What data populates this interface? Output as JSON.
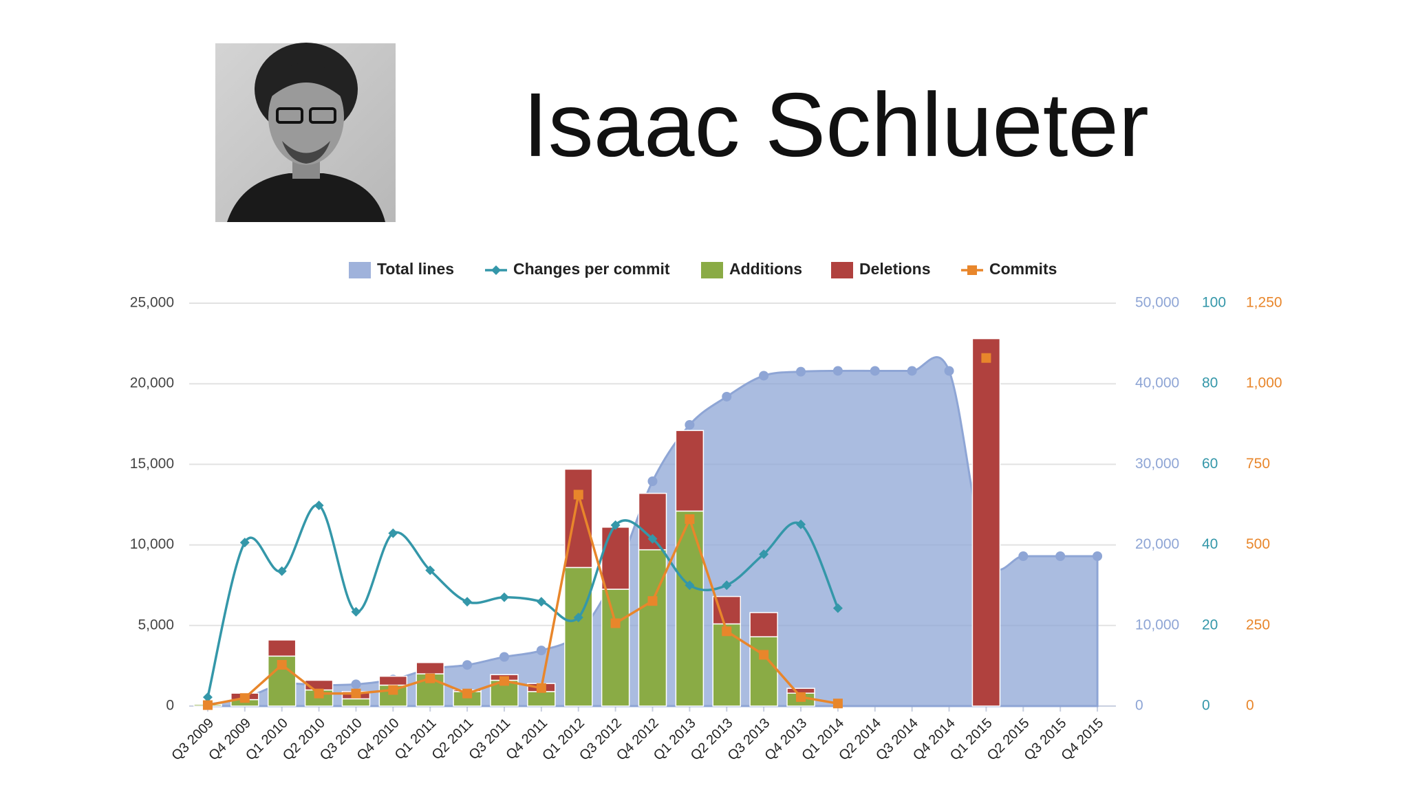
{
  "title": "Isaac Schlueter",
  "chart_data": {
    "type": "combo",
    "categories": [
      "Q3 2009",
      "Q4 2009",
      "Q1 2010",
      "Q2 2010",
      "Q3 2010",
      "Q4 2010",
      "Q1 2011",
      "Q2 2011",
      "Q3 2011",
      "Q4 2011",
      "Q1 2012",
      "Q3 2012",
      "Q4 2012",
      "Q1 2013",
      "Q2 2013",
      "Q3 2013",
      "Q4 2013",
      "Q1 2014",
      "Q2 2014",
      "Q3 2014",
      "Q4 2014",
      "Q1 2015",
      "Q2 2015",
      "Q3 2015",
      "Q4 2015"
    ],
    "series": [
      {
        "name": "Total lines",
        "type": "area",
        "axis": "y2",
        "color": "#8ea5d5",
        "values": [
          200,
          1000,
          2700,
          2600,
          2700,
          3300,
          4600,
          5100,
          6100,
          6900,
          9000,
          16300,
          27900,
          34900,
          38400,
          41000,
          41500,
          41600,
          41600,
          41600,
          41600,
          18600,
          18600,
          18600,
          18600
        ]
      },
      {
        "name": "Changes per commit",
        "type": "line",
        "axis": "y3",
        "color": "#3497a9",
        "values": [
          2.2,
          40.6,
          33.5,
          49.8,
          23.4,
          42.9,
          33.7,
          25.9,
          27,
          25.9,
          22,
          44.9,
          41.5,
          30,
          30,
          37.7,
          45.1,
          24.3,
          null,
          null,
          null,
          null,
          null,
          null,
          null
        ]
      },
      {
        "name": "Additions",
        "type": "bar",
        "axis": "y",
        "color": "#8aab45",
        "values": [
          100,
          400,
          3100,
          1000,
          450,
          1300,
          2000,
          900,
          1600,
          900,
          8600,
          7250,
          9700,
          12100,
          5100,
          4300,
          800,
          0,
          0,
          0,
          0,
          0,
          0,
          0,
          0
        ]
      },
      {
        "name": "Deletions",
        "type": "bar",
        "axis": "y",
        "color": "#b0413e",
        "values": [
          0,
          400,
          1000,
          600,
          450,
          550,
          700,
          100,
          350,
          500,
          6100,
          3850,
          3500,
          5000,
          1700,
          1500,
          300,
          0,
          0,
          0,
          0,
          22800,
          0,
          0,
          0
        ]
      },
      {
        "name": "Commits",
        "type": "line",
        "axis": "y4",
        "color": "#e8862b",
        "marker": "square",
        "values": [
          3,
          25,
          128,
          39,
          39,
          50,
          86,
          39,
          78,
          56,
          656,
          257,
          326,
          580,
          232,
          159,
          28,
          8,
          null,
          null,
          null,
          1080,
          null,
          null,
          null
        ]
      }
    ],
    "ylim": [
      0,
      25000
    ],
    "yticks": [
      0,
      {
        "value": 5000,
        "label": "5,000"
      },
      {
        "value": 10000,
        "label": "10,000"
      },
      {
        "value": 15000,
        "label": "15,000"
      },
      {
        "value": 20000,
        "label": "20,000"
      },
      {
        "value": 25000,
        "label": "25,000"
      }
    ],
    "y2lim": [
      0,
      50000
    ],
    "y2ticks": [
      0,
      {
        "value": 10000,
        "label": "10,000"
      },
      {
        "value": 20000,
        "label": "20,000"
      },
      {
        "value": 30000,
        "label": "30,000"
      },
      {
        "value": 40000,
        "label": "40,000"
      },
      {
        "value": 50000,
        "label": "50,000"
      }
    ],
    "y3lim": [
      0,
      100
    ],
    "y3ticks": [
      0,
      20,
      40,
      60,
      80,
      100
    ],
    "y4lim": [
      0,
      1250
    ],
    "y4ticks": [
      0,
      250,
      500,
      750,
      {
        "value": 1000,
        "label": "1,000"
      },
      {
        "value": 1250,
        "label": "1,250"
      }
    ],
    "grid": true,
    "legend": "top"
  }
}
